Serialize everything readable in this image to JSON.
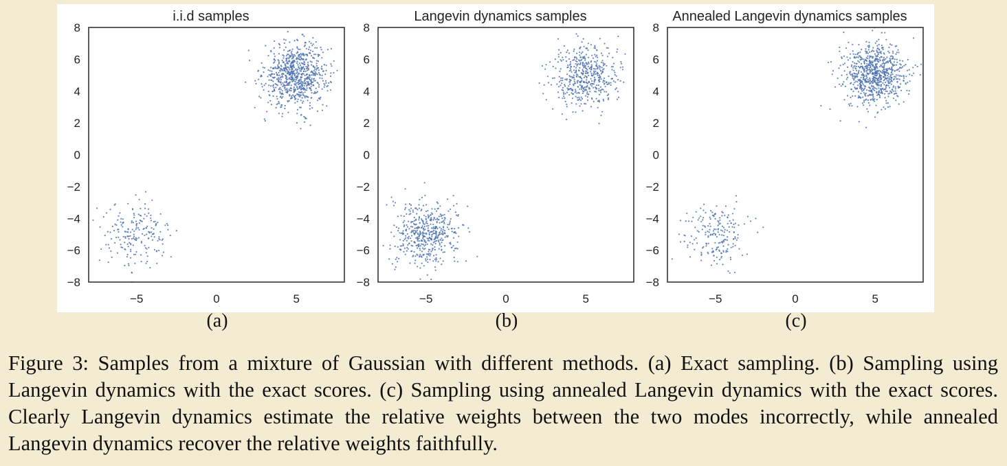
{
  "colors": {
    "background": "#f3ecd3",
    "panel": "#ffffff",
    "point": "#4c72b0",
    "axes": "#333333"
  },
  "chart_data": [
    {
      "type": "scatter",
      "title": "i.i.d samples",
      "subcaption": "(a)",
      "xlim": [
        -8,
        8
      ],
      "ylim": [
        -8,
        8
      ],
      "xticks": [
        -5,
        0,
        5
      ],
      "yticks": [
        8,
        6,
        4,
        2,
        0,
        -2,
        -4,
        -6,
        -8
      ],
      "xtick_labels": [
        "−5",
        "0",
        "5"
      ],
      "ytick_labels": [
        "8",
        "6",
        "4",
        "2",
        "0",
        "−2",
        "−4",
        "−6",
        "−8"
      ],
      "grid": false,
      "series": [
        {
          "center": [
            5,
            5
          ],
          "std": 1,
          "count": 800
        },
        {
          "center": [
            -5,
            -5
          ],
          "std": 1,
          "count": 200
        }
      ]
    },
    {
      "type": "scatter",
      "title": "Langevin dynamics samples",
      "subcaption": "(b)",
      "xlim": [
        -8,
        8
      ],
      "ylim": [
        -8,
        8
      ],
      "xticks": [
        -5,
        0,
        5
      ],
      "yticks": [
        8,
        6,
        4,
        2,
        0,
        -2,
        -4,
        -6,
        -8
      ],
      "xtick_labels": [
        "−5",
        "0",
        "5"
      ],
      "ytick_labels": [
        "8",
        "6",
        "4",
        "2",
        "0",
        "−2",
        "−4",
        "−6",
        "−8"
      ],
      "grid": false,
      "series": [
        {
          "center": [
            5,
            5
          ],
          "std": 1,
          "count": 500
        },
        {
          "center": [
            -5,
            -5
          ],
          "std": 1,
          "count": 500
        }
      ]
    },
    {
      "type": "scatter",
      "title": "Annealed Langevin dynamics samples",
      "subcaption": "(c)",
      "xlim": [
        -8,
        8
      ],
      "ylim": [
        -8,
        8
      ],
      "xticks": [
        -5,
        0,
        5
      ],
      "yticks": [
        8,
        6,
        4,
        2,
        0,
        -2,
        -4,
        -6,
        -8
      ],
      "xtick_labels": [
        "−5",
        "0",
        "5"
      ],
      "ytick_labels": [
        "8",
        "6",
        "4",
        "2",
        "0",
        "−2",
        "−4",
        "−6",
        "−8"
      ],
      "grid": false,
      "series": [
        {
          "center": [
            5,
            5
          ],
          "std": 1,
          "count": 800
        },
        {
          "center": [
            -5,
            -5
          ],
          "std": 1,
          "count": 200
        }
      ]
    }
  ],
  "caption": "Figure 3: Samples from a mixture of Gaussian with different methods. (a) Exact sampling. (b) Sampling using Langevin dynamics with the exact scores. (c) Sampling using annealed Langevin dynamics with the exact scores. Clearly Langevin dynamics estimate the relative weights between the two modes incorrectly, while annealed Langevin dynamics recover the relative weights faithfully."
}
